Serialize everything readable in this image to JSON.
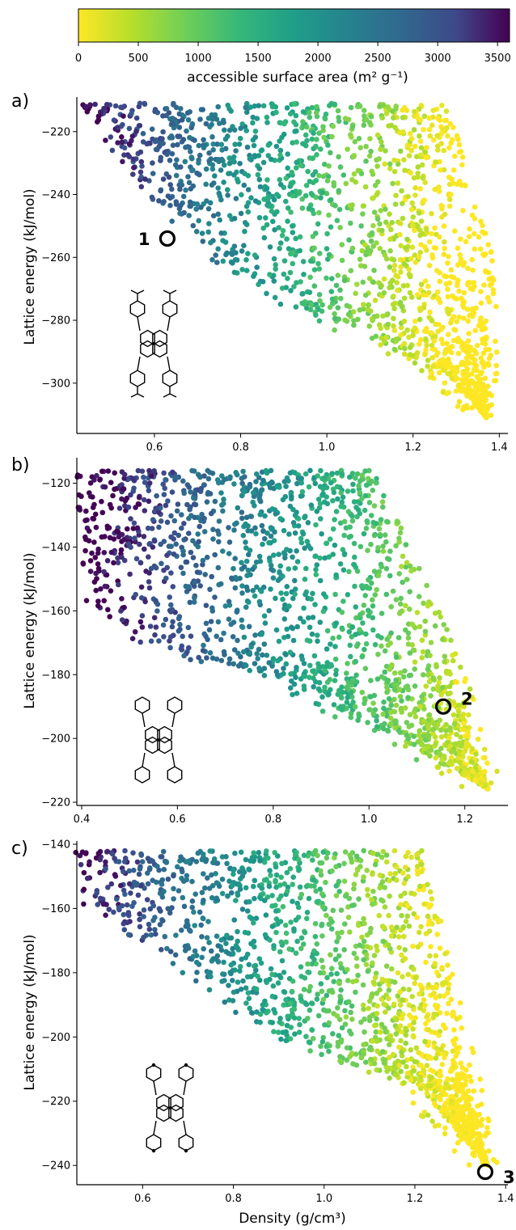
{
  "colorbar": {
    "label": "accessible surface area (m² g⁻¹)",
    "ticks": [
      "0",
      "500",
      "1000",
      "1500",
      "2000",
      "2500",
      "3000",
      "3500"
    ],
    "range": [
      0,
      3600
    ],
    "colormap": "viridis (reversed)"
  },
  "chart_data": [
    {
      "type": "scatter",
      "panel_label": "a)",
      "xlabel": "",
      "ylabel": "Lattice energy (kJ/mol)",
      "xlim": [
        0.42,
        1.42
      ],
      "ylim": [
        -316,
        -209
      ],
      "x_ticks": [
        "0.6",
        "0.8",
        "1.0",
        "1.2",
        "1.4"
      ],
      "y_ticks": [
        "-220",
        "-240",
        "-260",
        "-280",
        "-300"
      ],
      "envelope": {
        "top": -211,
        "low_density_edge": [
          [
            0.47,
            -212
          ],
          [
            0.62,
            -238
          ],
          [
            0.78,
            -262
          ],
          [
            1.0,
            -280
          ],
          [
            1.28,
            -297
          ],
          [
            1.37,
            -311
          ]
        ],
        "high_density_edge": [
          [
            1.25,
            -211
          ],
          [
            1.36,
            -262
          ],
          [
            1.37,
            -311
          ]
        ]
      },
      "highlight": {
        "label": "1",
        "x": 0.63,
        "y": -254
      },
      "molecule_substituent": "4-carboxyphenyl"
    },
    {
      "type": "scatter",
      "panel_label": "b)",
      "xlabel": "",
      "ylabel": "Lattice energy (kJ/mol)",
      "xlim": [
        0.39,
        1.29
      ],
      "ylim": [
        -221,
        -112
      ],
      "x_ticks": [
        "0.4",
        "0.6",
        "0.8",
        "1.0",
        "1.2"
      ],
      "y_ticks": [
        "-120",
        "-140",
        "-160",
        "-180",
        "-200",
        "-220"
      ],
      "envelope": {
        "top": -116,
        "low_density_edge": [
          [
            0.44,
            -122
          ],
          [
            0.46,
            -158
          ],
          [
            0.58,
            -172
          ],
          [
            0.8,
            -180
          ],
          [
            1.0,
            -195
          ],
          [
            1.25,
            -216
          ]
        ],
        "high_density_edge": [
          [
            0.98,
            -116
          ],
          [
            1.15,
            -170
          ],
          [
            1.25,
            -216
          ]
        ]
      },
      "highlight": {
        "label": "2",
        "x": 1.155,
        "y": -190
      },
      "molecule_substituent": "phenyl"
    },
    {
      "type": "scatter",
      "panel_label": "c)",
      "xlabel": "Density (g/cm³)",
      "ylabel": "Lattice energy (kJ/mol)",
      "xlim": [
        0.455,
        1.405
      ],
      "ylim": [
        -246,
        -139
      ],
      "x_ticks": [
        "0.6",
        "0.8",
        "1.0",
        "1.2",
        "1.4"
      ],
      "y_ticks": [
        "-140",
        "-160",
        "-180",
        "-200",
        "-220",
        "-240"
      ],
      "envelope": {
        "top": -142,
        "low_density_edge": [
          [
            0.5,
            -149
          ],
          [
            0.52,
            -160
          ],
          [
            0.72,
            -178
          ],
          [
            0.9,
            -198
          ],
          [
            1.2,
            -214
          ],
          [
            1.36,
            -240
          ]
        ],
        "high_density_edge": [
          [
            1.19,
            -142
          ],
          [
            1.3,
            -205
          ],
          [
            1.36,
            -240
          ]
        ]
      },
      "highlight": {
        "label": "3",
        "x": 1.355,
        "y": -242
      },
      "molecule_substituent": "4-pyridyl"
    }
  ]
}
